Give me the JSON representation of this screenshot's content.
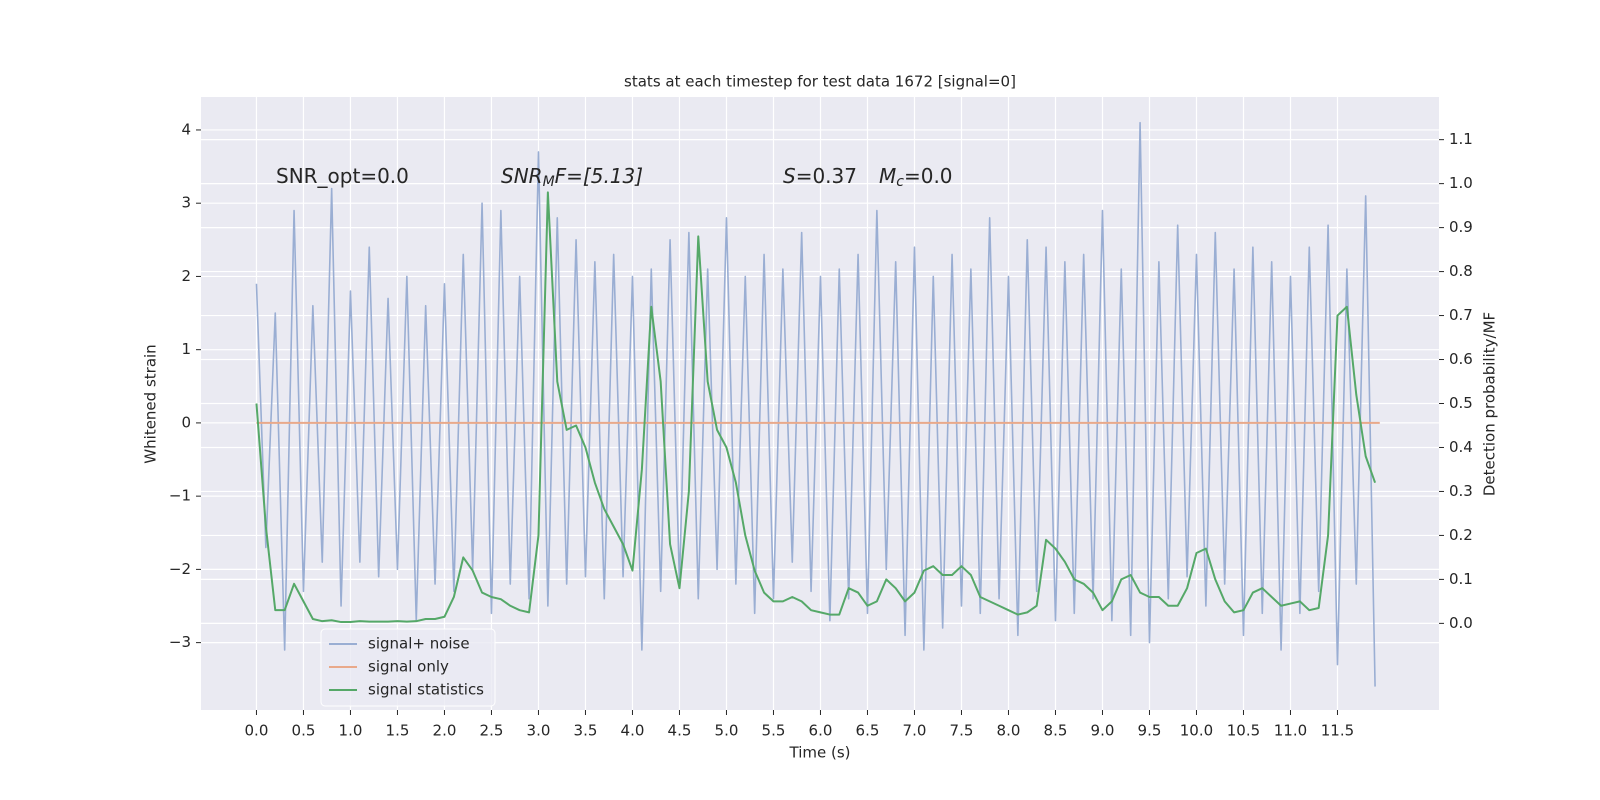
{
  "chart_data": {
    "type": "line",
    "title": "stats at each timestep for test data 1672 [signal=0]",
    "xlabel": "Time (s)",
    "ylabel": "Whitened strain",
    "y2label": "Detection probability/MF",
    "annotations": [
      [
        "SNR_opt=0.0"
      ],
      [
        "SNR",
        "M",
        "F=[5.13]"
      ],
      [
        "S",
        "=0.37",
        "M",
        "c",
        "=0.0"
      ]
    ],
    "x": [
      0.0,
      0.1,
      0.2,
      0.3,
      0.4,
      0.5,
      0.6,
      0.7,
      0.8,
      0.9,
      1.0,
      1.1,
      1.2,
      1.3,
      1.4,
      1.5,
      1.6,
      1.7,
      1.8,
      1.9,
      2.0,
      2.1,
      2.2,
      2.3,
      2.4,
      2.5,
      2.6,
      2.7,
      2.8,
      2.9,
      3.0,
      3.1,
      3.2,
      3.3,
      3.4,
      3.5,
      3.6,
      3.7,
      3.8,
      3.9,
      4.0,
      4.1,
      4.2,
      4.3,
      4.4,
      4.5,
      4.6,
      4.7,
      4.8,
      4.9,
      5.0,
      5.1,
      5.2,
      5.3,
      5.4,
      5.5,
      5.6,
      5.7,
      5.8,
      5.9,
      6.0,
      6.1,
      6.2,
      6.3,
      6.4,
      6.5,
      6.6,
      6.7,
      6.8,
      6.9,
      7.0,
      7.1,
      7.2,
      7.3,
      7.4,
      7.5,
      7.6,
      7.7,
      7.8,
      7.9,
      8.0,
      8.1,
      8.2,
      8.3,
      8.4,
      8.5,
      8.6,
      8.7,
      8.8,
      8.9,
      9.0,
      9.1,
      9.2,
      9.3,
      9.4,
      9.5,
      9.6,
      9.7,
      9.8,
      9.9,
      10.0,
      10.1,
      10.2,
      10.3,
      10.4,
      10.5,
      10.6,
      10.7,
      10.8,
      10.9,
      11.0,
      11.1,
      11.2,
      11.3,
      11.4,
      11.5,
      11.6,
      11.7,
      11.8,
      11.9
    ],
    "series": [
      {
        "name": "signal+ noise",
        "color": "#9aaed3",
        "values": [
          1.9,
          -1.7,
          1.5,
          -3.1,
          2.9,
          -2.3,
          1.6,
          -1.9,
          3.2,
          -2.5,
          1.8,
          -1.9,
          2.4,
          -2.1,
          1.7,
          -2.0,
          2.0,
          -2.7,
          1.6,
          -2.2,
          1.9,
          -2.3,
          2.3,
          -2.0,
          3.0,
          -2.6,
          2.9,
          -2.2,
          2.0,
          -2.4,
          3.7,
          -2.5,
          2.8,
          -2.2,
          2.5,
          -2.1,
          2.2,
          -2.4,
          2.3,
          -2.1,
          2.0,
          -3.1,
          2.1,
          -2.3,
          2.5,
          -2.2,
          2.6,
          -2.4,
          2.1,
          -2.0,
          2.8,
          -2.2,
          2.0,
          -2.6,
          2.3,
          -2.4,
          2.1,
          -1.9,
          2.6,
          -2.3,
          2.0,
          -2.7,
          2.1,
          -2.4,
          2.3,
          -2.6,
          2.9,
          -2.0,
          2.2,
          -2.9,
          2.4,
          -3.1,
          2.0,
          -2.8,
          2.3,
          -2.5,
          2.1,
          -2.6,
          2.8,
          -2.4,
          2.0,
          -2.9,
          2.5,
          -2.3,
          2.4,
          -2.7,
          2.2,
          -2.6,
          2.3,
          -2.4,
          2.9,
          -2.7,
          2.1,
          -2.9,
          4.1,
          -3.0,
          2.2,
          -2.4,
          2.7,
          -2.1,
          2.3,
          -2.5,
          2.6,
          -2.2,
          2.1,
          -2.9,
          2.4,
          -2.6,
          2.2,
          -3.1,
          2.0,
          -2.6,
          2.4,
          -2.3,
          2.7,
          -3.3,
          2.1,
          -2.2,
          3.1,
          -3.6
        ]
      },
      {
        "name": "signal only",
        "color": "#e9a98a",
        "x": [
          0.0,
          11.95
        ],
        "values": [
          0,
          0
        ]
      },
      {
        "name": "signal statistics",
        "color": "#55a868",
        "axis": "y2",
        "values": [
          0.5,
          0.22,
          0.03,
          0.03,
          0.09,
          0.05,
          0.01,
          0.005,
          0.007,
          0.003,
          0.003,
          0.005,
          0.004,
          0.004,
          0.004,
          0.005,
          0.004,
          0.005,
          0.01,
          0.01,
          0.015,
          0.06,
          0.15,
          0.12,
          0.07,
          0.06,
          0.055,
          0.04,
          0.03,
          0.025,
          0.2,
          0.98,
          0.55,
          0.44,
          0.45,
          0.4,
          0.32,
          0.26,
          0.22,
          0.18,
          0.12,
          0.35,
          0.72,
          0.55,
          0.18,
          0.08,
          0.3,
          0.88,
          0.55,
          0.44,
          0.4,
          0.32,
          0.2,
          0.12,
          0.07,
          0.05,
          0.05,
          0.06,
          0.05,
          0.03,
          0.025,
          0.02,
          0.02,
          0.08,
          0.07,
          0.04,
          0.05,
          0.1,
          0.08,
          0.05,
          0.07,
          0.12,
          0.13,
          0.11,
          0.11,
          0.13,
          0.11,
          0.06,
          0.05,
          0.04,
          0.03,
          0.02,
          0.025,
          0.04,
          0.19,
          0.17,
          0.14,
          0.1,
          0.09,
          0.07,
          0.03,
          0.05,
          0.1,
          0.11,
          0.07,
          0.06,
          0.06,
          0.04,
          0.04,
          0.08,
          0.16,
          0.17,
          0.1,
          0.05,
          0.025,
          0.03,
          0.07,
          0.08,
          0.06,
          0.04,
          0.045,
          0.05,
          0.03,
          0.035,
          0.2,
          0.7,
          0.72,
          0.52,
          0.38,
          0.32
        ]
      }
    ],
    "xlim": [
      -0.59,
      12.58
    ],
    "xticks": [
      {
        "value": 0,
        "label": "0.0"
      },
      0.5,
      {
        "value": 1,
        "label": "1.0"
      },
      1.5,
      {
        "value": 2,
        "label": "2.0"
      },
      2.5,
      {
        "value": 3,
        "label": "3.0"
      },
      3.5,
      {
        "value": 4,
        "label": "4.0"
      },
      4.5,
      {
        "value": 5,
        "label": "5.0"
      },
      5.5,
      {
        "value": 6,
        "label": "6.0"
      },
      6.5,
      {
        "value": 7,
        "label": "7.0"
      },
      7.5,
      {
        "value": 8,
        "label": "8.0"
      },
      8.5,
      {
        "value": 9,
        "label": "9.0"
      },
      9.5,
      {
        "value": 10,
        "label": "10.0"
      },
      10.5,
      {
        "value": 11,
        "label": "11.0"
      },
      11.5
    ],
    "ylim": [
      -3.92,
      4.45
    ],
    "yticks": [
      {
        "value": -3,
        "label": "−3"
      },
      {
        "value": -2,
        "label": "−2"
      },
      {
        "value": -1,
        "label": "−1"
      },
      0,
      1,
      2,
      3,
      4
    ],
    "y2lim": [
      -0.197,
      1.197
    ],
    "y2ticks": [
      {
        "value": 0,
        "label": "0.0"
      },
      0.1,
      0.2,
      0.3,
      0.4,
      0.5,
      0.6,
      0.7,
      0.8,
      0.9,
      {
        "value": 1,
        "label": "1.0"
      },
      1.1
    ],
    "grid": true,
    "legend": "lower left"
  }
}
